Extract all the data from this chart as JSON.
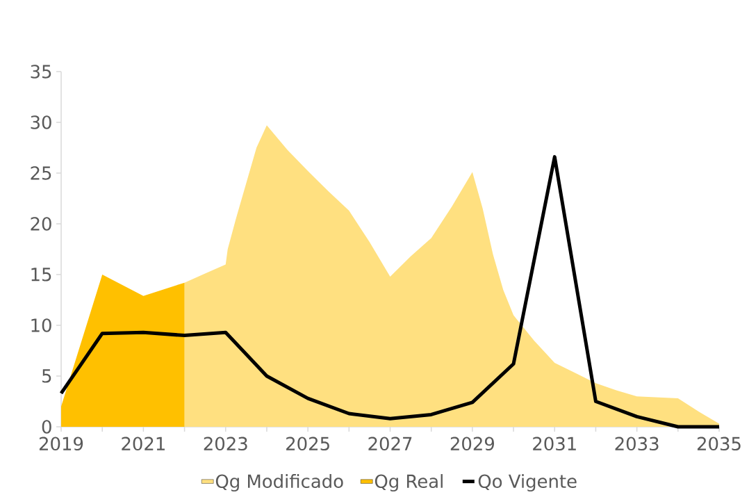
{
  "chart_data": {
    "type": "area",
    "x": [
      2019,
      2020,
      2021,
      2022,
      2023,
      2024,
      2025,
      2026,
      2027,
      2028,
      2029,
      2030,
      2031,
      2032,
      2033,
      2034,
      2035
    ],
    "series": [
      {
        "name": "Qg Modificado",
        "color": "#ffe080",
        "x": [
          2022,
          2022.5,
          2023,
          2023.05,
          2023.25,
          2023.5,
          2023.75,
          2024,
          2024.5,
          2025,
          2025.5,
          2026,
          2026.5,
          2027,
          2027.5,
          2028,
          2028.5,
          2029,
          2029.25,
          2029.5,
          2029.75,
          2030,
          2030.5,
          2031,
          2031.5,
          2032,
          2032.5,
          2033,
          2034,
          2034.5,
          2035
        ],
        "values": [
          14.2,
          15.1,
          16.0,
          17.5,
          20.5,
          24,
          27.5,
          29.7,
          27.3,
          25.2,
          23.2,
          21.3,
          18.2,
          14.8,
          16.8,
          18.6,
          21.7,
          25.1,
          21.5,
          17,
          13.5,
          11,
          8.5,
          6.3,
          5.3,
          4.3,
          3.6,
          3.0,
          2.8,
          1.5,
          0.3
        ]
      },
      {
        "name": "Qg Real",
        "color": "#ffc000",
        "x": [
          2019,
          2020,
          2021,
          2022
        ],
        "values": [
          2.0,
          15.0,
          12.9,
          14.2
        ]
      },
      {
        "name": "Qo Vigente",
        "type": "line",
        "color": "#000000",
        "values": [
          3.3,
          9.2,
          9.3,
          9.0,
          9.3,
          5.0,
          2.8,
          1.3,
          0.8,
          1.2,
          2.4,
          6.2,
          26.6,
          2.5,
          1.0,
          0,
          0
        ]
      }
    ],
    "xlim": [
      2019,
      2035
    ],
    "xticks": [
      2019,
      {
        "value": 2020,
        "label": null
      },
      2021,
      {
        "value": 2022,
        "label": null
      },
      2023,
      {
        "value": 2024,
        "label": null
      },
      2025,
      {
        "value": 2026,
        "label": null
      },
      2027,
      {
        "value": 2028,
        "label": null
      },
      2029,
      {
        "value": 2030,
        "label": null
      },
      2031,
      {
        "value": 2032,
        "label": null
      },
      2033,
      {
        "value": 2034,
        "label": null
      },
      2035
    ],
    "ylim": [
      0,
      35
    ],
    "yticks": [
      0,
      5,
      10,
      15,
      20,
      25,
      30,
      35
    ],
    "grid": false,
    "legend": "bottom",
    "marker": "none",
    "line_style": "solid"
  }
}
